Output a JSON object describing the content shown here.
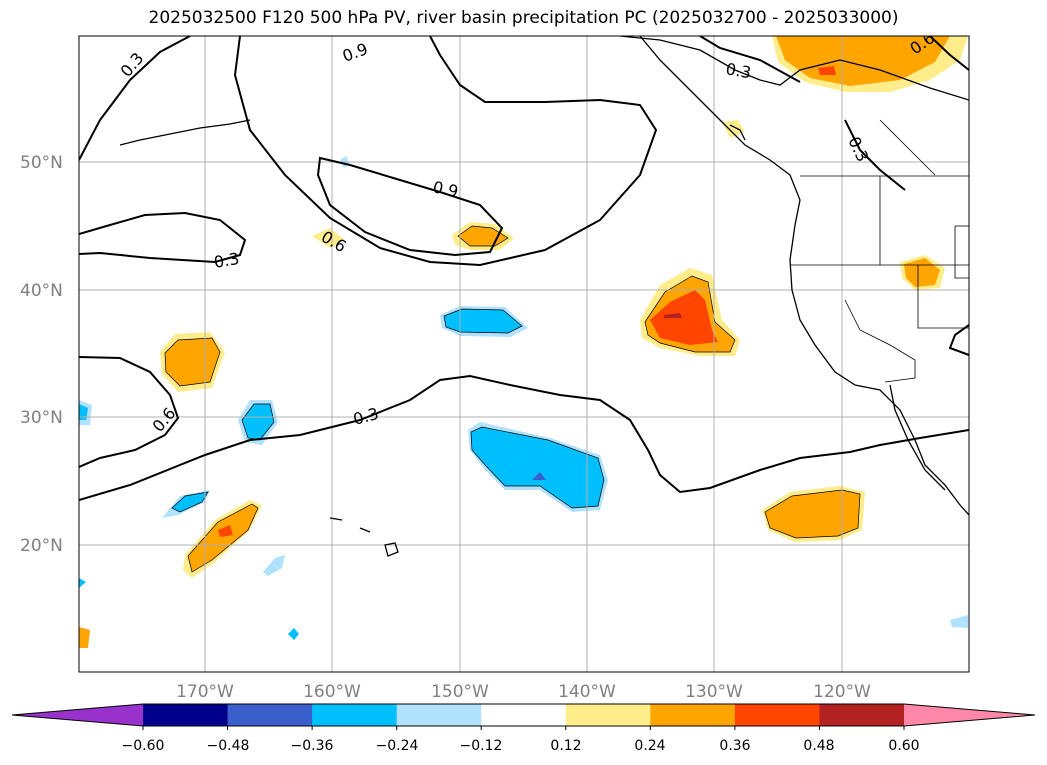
{
  "title": "2025032500 F120 500 hPa PV, river basin precipitation PC (2025032700 - 2025033000)",
  "lat_labels": [
    "50°N",
    "40°N",
    "30°N",
    "20°N"
  ],
  "lon_labels": [
    "170°W",
    "160°W",
    "150°W",
    "140°W",
    "130°W",
    "120°W"
  ],
  "contour_labels": [
    "0.3",
    "0.9",
    "0.3",
    "0.9",
    "0.6",
    "0.3",
    "0.3",
    "0.6",
    "0.3",
    "0.6"
  ],
  "colorbar": {
    "tick_labels": [
      "−0.60",
      "−0.48",
      "−0.36",
      "−0.24",
      "−0.12",
      "0.12",
      "0.24",
      "0.36",
      "0.48",
      "0.60"
    ],
    "colors": [
      "#9932CC",
      "#00008B",
      "#3A5FCD",
      "#00BFFF",
      "#B0E2FF",
      "#FFFFFF",
      "#FFEC8B",
      "#FFA500",
      "#FF4500",
      "#B22222",
      "#FF88AA"
    ]
  }
}
